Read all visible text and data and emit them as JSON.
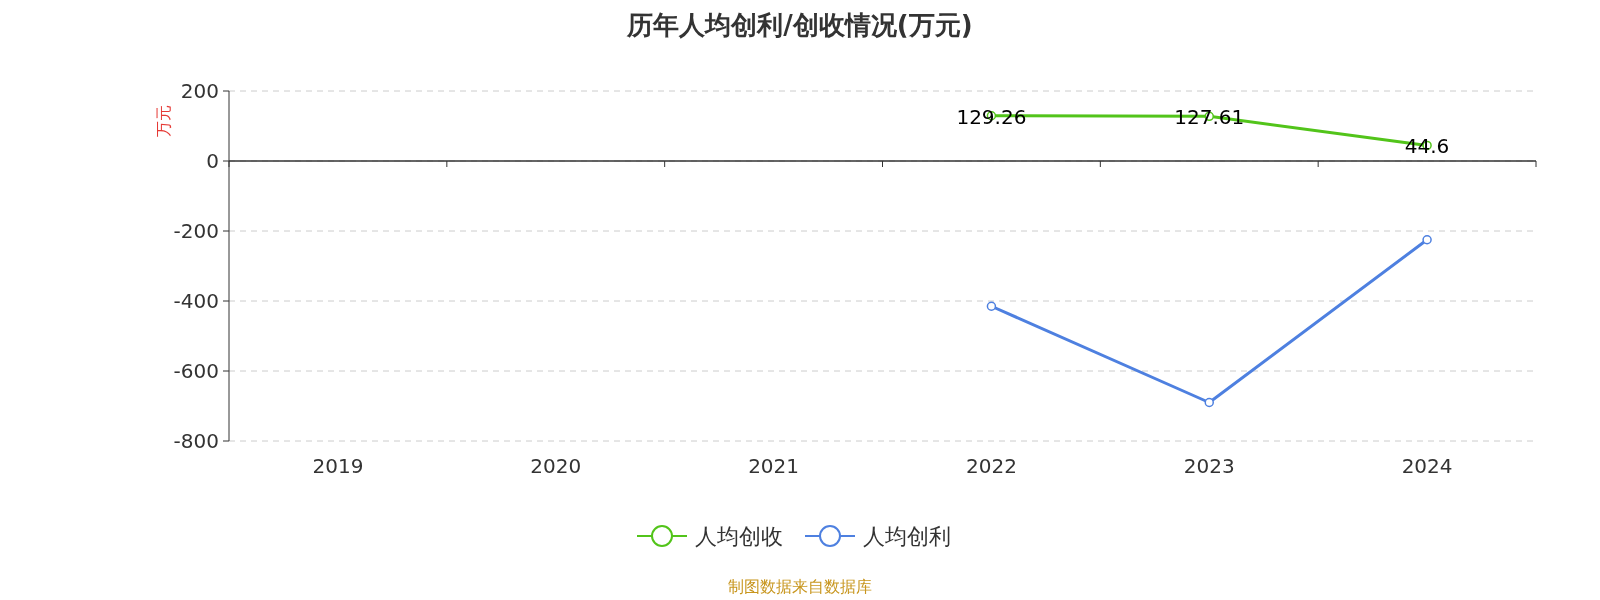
{
  "chart_data": {
    "type": "line",
    "title": "历年人均创利/创收情况(万元)",
    "ylabel": "万元",
    "categories": [
      "2019",
      "2020",
      "2021",
      "2022",
      "2023",
      "2024"
    ],
    "series": [
      {
        "name": "人均创收",
        "color": "#52c41a",
        "values": [
          null,
          null,
          null,
          129.26,
          127.61,
          44.6
        ],
        "value_labels": [
          null,
          null,
          null,
          "129.26",
          "127.61",
          "44.6"
        ]
      },
      {
        "name": "人均创利",
        "color": "#4e80e0",
        "values": [
          null,
          null,
          null,
          -415,
          -690,
          -225
        ]
      }
    ],
    "ylim": [
      -800,
      200
    ],
    "yticks": [
      -800,
      -600,
      -400,
      -200,
      0,
      200
    ],
    "grid": "y",
    "legend": "bottom",
    "marker": "circle",
    "line_style": "solid",
    "annotations": [
      "制图数据来自数据库"
    ]
  }
}
